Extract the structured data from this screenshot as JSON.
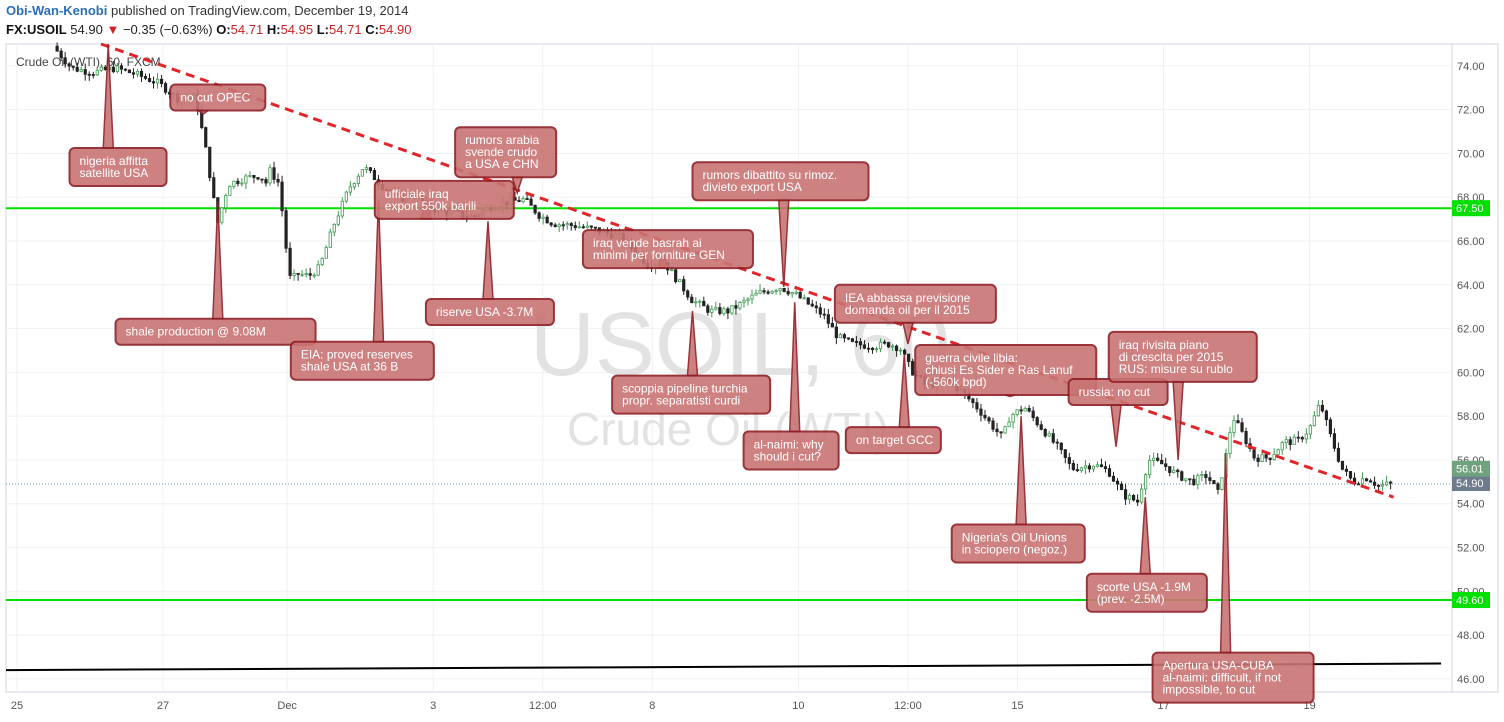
{
  "header": {
    "author": "Obi-Wan-Kenobi",
    "published": "published on TradingView.com, December 19, 2014",
    "symbol": "FX:USOIL",
    "last": "54.90",
    "change": "−0.35 (−0.63%)",
    "o_label": "O:",
    "o": "54.71",
    "h_label": "H:",
    "h": "54.95",
    "l_label": "L:",
    "l": "54.71",
    "c_label": "C:",
    "c": "54.90"
  },
  "chart_data": {
    "type": "candlestick",
    "legend": "Crude Oil (WTI), 60, FXCM",
    "watermark": [
      "USOIL, 60",
      "Crude Oil (WTI)"
    ],
    "ylim": [
      45.4,
      75.0
    ],
    "y_ticks": [
      "46.00",
      "48.00",
      "50.00",
      "52.00",
      "54.00",
      "56.00",
      "58.00",
      "60.00",
      "62.00",
      "64.00",
      "66.00",
      "68.00",
      "70.00",
      "72.00",
      "74.00"
    ],
    "x_ticks": [
      {
        "label": "25",
        "d": 0
      },
      {
        "label": "27",
        "d": 2
      },
      {
        "label": "Dec",
        "d": 3.7
      },
      {
        "label": "3",
        "d": 5.7
      },
      {
        "label": "12:00",
        "d": 7.2
      },
      {
        "label": "8",
        "d": 8.7
      },
      {
        "label": "10",
        "d": 10.7
      },
      {
        "label": "12:00",
        "d": 12.2
      },
      {
        "label": "15",
        "d": 13.7
      },
      {
        "label": "17",
        "d": 15.7
      },
      {
        "label": "19",
        "d": 17.7
      }
    ],
    "x_domain": [
      -0.15,
      19.65
    ],
    "path": [
      [
        0.55,
        74.9
      ],
      [
        0.8,
        73.9
      ],
      [
        1.1,
        73.7
      ],
      [
        1.4,
        73.9
      ],
      [
        1.7,
        73.6
      ],
      [
        2.0,
        73.2
      ],
      [
        2.3,
        72.4
      ],
      [
        2.5,
        72.6
      ],
      [
        2.65,
        70.0
      ],
      [
        2.8,
        66.8
      ],
      [
        2.95,
        68.6
      ],
      [
        3.2,
        68.9
      ],
      [
        3.4,
        69.0
      ],
      [
        3.45,
        68.4
      ],
      [
        3.5,
        69.3
      ],
      [
        3.65,
        68.6
      ],
      [
        3.72,
        66.2
      ],
      [
        3.8,
        64.2
      ],
      [
        3.9,
        64.5
      ],
      [
        4.05,
        64.4
      ],
      [
        4.2,
        64.8
      ],
      [
        4.4,
        66.8
      ],
      [
        4.6,
        68.4
      ],
      [
        4.8,
        69.4
      ],
      [
        4.95,
        68.9
      ],
      [
        5.1,
        68.4
      ],
      [
        5.3,
        67.9
      ],
      [
        5.5,
        68.2
      ],
      [
        5.7,
        67.5
      ],
      [
        6.0,
        67.3
      ],
      [
        6.3,
        67.1
      ],
      [
        6.55,
        67.6
      ],
      [
        6.8,
        67.8
      ],
      [
        7.0,
        67.9
      ],
      [
        7.2,
        67.2
      ],
      [
        7.4,
        66.8
      ],
      [
        7.7,
        66.7
      ],
      [
        8.0,
        66.5
      ],
      [
        8.3,
        66.2
      ],
      [
        8.5,
        65.6
      ],
      [
        8.7,
        64.9
      ],
      [
        8.9,
        65.1
      ],
      [
        9.1,
        64.2
      ],
      [
        9.3,
        63.3
      ],
      [
        9.55,
        62.8
      ],
      [
        9.8,
        62.8
      ],
      [
        10.0,
        63.2
      ],
      [
        10.2,
        63.6
      ],
      [
        10.5,
        63.9
      ],
      [
        10.7,
        63.6
      ],
      [
        10.9,
        63.1
      ],
      [
        11.1,
        62.6
      ],
      [
        11.3,
        61.6
      ],
      [
        11.5,
        61.3
      ],
      [
        11.8,
        61.2
      ],
      [
        12.0,
        61.3
      ],
      [
        12.15,
        61.1
      ],
      [
        12.3,
        60.1
      ],
      [
        12.5,
        59.4
      ],
      [
        12.8,
        59.6
      ],
      [
        13.0,
        59.1
      ],
      [
        13.2,
        58.4
      ],
      [
        13.45,
        57.4
      ],
      [
        13.55,
        57.0
      ],
      [
        13.65,
        58.0
      ],
      [
        13.85,
        58.4
      ],
      [
        14.05,
        57.6
      ],
      [
        14.3,
        56.6
      ],
      [
        14.5,
        55.6
      ],
      [
        14.8,
        55.8
      ],
      [
        15.0,
        55.5
      ],
      [
        15.2,
        54.4
      ],
      [
        15.4,
        54.1
      ],
      [
        15.55,
        56.0
      ],
      [
        15.75,
        55.8
      ],
      [
        15.95,
        55.3
      ],
      [
        16.15,
        55.0
      ],
      [
        16.35,
        55.3
      ],
      [
        16.5,
        54.5
      ],
      [
        16.6,
        56.0
      ],
      [
        16.7,
        58.0
      ],
      [
        16.85,
        57.1
      ],
      [
        17.0,
        56.1
      ],
      [
        17.2,
        56.1
      ],
      [
        17.4,
        56.8
      ],
      [
        17.6,
        56.9
      ],
      [
        17.75,
        57.4
      ],
      [
        17.9,
        58.6
      ],
      [
        18.05,
        57.0
      ],
      [
        18.2,
        55.6
      ],
      [
        18.35,
        55.0
      ],
      [
        18.55,
        55.2
      ],
      [
        18.7,
        54.8
      ],
      [
        18.85,
        54.9
      ]
    ],
    "horizontal_levels": [
      {
        "label": "67.50",
        "value": 67.5,
        "color": "#00e000"
      },
      {
        "label": "49.60",
        "value": 49.6,
        "color": "#00e000"
      }
    ],
    "price_tags": [
      {
        "label": "54.90",
        "value": 54.9,
        "color": "#6e7b8b"
      },
      {
        "label": "56.01",
        "value": 56.01,
        "color": "#6fa37e"
      }
    ],
    "trendline": {
      "from": [
        1.15,
        75.0
      ],
      "to": [
        18.85,
        54.3
      ],
      "color": "#e0262b"
    },
    "black_line": {
      "from": [
        -0.15,
        46.4
      ],
      "to": [
        19.5,
        46.7
      ],
      "color": "#000000"
    },
    "annotations": [
      {
        "lines": [
          "no cut OPEC"
        ],
        "box": [
          2.1,
          73.15
        ],
        "ptr": [
          2.55,
          71.8
        ],
        "w": 95
      },
      {
        "lines": [
          "nigeria affitta",
          "satellite USA"
        ],
        "box": [
          0.72,
          70.25
        ],
        "ptr": [
          1.25,
          75.0
        ],
        "w": 97
      },
      {
        "lines": [
          "shale production @ 9.08M"
        ],
        "box": [
          1.35,
          62.45
        ],
        "ptr": [
          2.75,
          67.8
        ],
        "w": 200
      },
      {
        "lines": [
          "EIA: proved reserves",
          "shale USA at 36 B"
        ],
        "box": [
          3.75,
          61.4
        ],
        "ptr": [
          4.95,
          67.9
        ],
        "w": 143
      },
      {
        "lines": [
          "ufficiale iraq",
          "export 550k barili"
        ],
        "box": [
          4.9,
          68.75
        ],
        "ptr": [
          5.6,
          67.8
        ],
        "w": 139
      },
      {
        "lines": [
          "riserve USA -3.7M"
        ],
        "box": [
          5.6,
          63.35
        ],
        "ptr": [
          6.45,
          66.9
        ],
        "w": 128
      },
      {
        "lines": [
          "rumors arabia",
          "svende crudo",
          "a USA e CHN"
        ],
        "box": [
          6.0,
          71.2
        ],
        "ptr": [
          6.85,
          68.2
        ],
        "w": 101
      },
      {
        "lines": [
          "iraq vende basrah ai",
          "minimi per forniture GEN"
        ],
        "box": [
          7.75,
          66.5
        ],
        "ptr": [
          8.85,
          65.4
        ],
        "w": 170
      },
      {
        "lines": [
          "rumors dibattito su rimoz.",
          "divieto export USA"
        ],
        "box": [
          9.25,
          69.6
        ],
        "ptr": [
          10.5,
          63.9
        ],
        "w": 176
      },
      {
        "lines": [
          "scoppia pipeline turchia",
          "propr. separatisti curdi"
        ],
        "box": [
          8.15,
          59.85
        ],
        "ptr": [
          9.25,
          62.8
        ],
        "w": 158
      },
      {
        "lines": [
          "al-naimi: why",
          "should i cut?"
        ],
        "box": [
          9.95,
          57.3
        ],
        "ptr": [
          10.65,
          63.2
        ],
        "w": 95
      },
      {
        "lines": [
          "on target GCC"
        ],
        "box": [
          11.35,
          57.5
        ],
        "ptr": [
          12.15,
          60.8
        ],
        "w": 95
      },
      {
        "lines": [
          "IEA abbassa previsione",
          "domanda oil per il 2015"
        ],
        "box": [
          11.2,
          64.0
        ],
        "ptr": [
          12.2,
          61.3
        ],
        "w": 161
      },
      {
        "lines": [
          "guerra civile libia:",
          "chiusi Es Sider e Ras Lanuf",
          "(-560k bpd)"
        ],
        "box": [
          12.3,
          61.25
        ],
        "ptr": [
          13.6,
          58.9
        ],
        "w": 181
      },
      {
        "lines": [
          "Nigeria's Oil Unions",
          "in sciopero (negoz.)"
        ],
        "box": [
          12.8,
          53.05
        ],
        "ptr": [
          13.75,
          58.0
        ],
        "w": 133
      },
      {
        "lines": [
          "russia: no cut"
        ],
        "box": [
          14.4,
          59.7
        ],
        "ptr": [
          15.05,
          56.6
        ],
        "w": 99
      },
      {
        "lines": [
          "iraq rivisita piano",
          "di crescita per 2015",
          "RUS: misure su rublo"
        ],
        "box": [
          14.95,
          61.85
        ],
        "ptr": [
          15.9,
          56.0
        ],
        "w": 148
      },
      {
        "lines": [
          "scorte USA -1.9M",
          "(prev. -2.5M)"
        ],
        "box": [
          14.65,
          50.8
        ],
        "ptr": [
          15.45,
          54.3
        ],
        "w": 120
      },
      {
        "lines": [
          "Apertura USA-CUBA",
          "al-naimi: difficult, if not",
          "impossible, to cut"
        ],
        "box": [
          15.55,
          47.2
        ],
        "ptr": [
          16.55,
          56.3
        ],
        "w": 161
      }
    ]
  }
}
